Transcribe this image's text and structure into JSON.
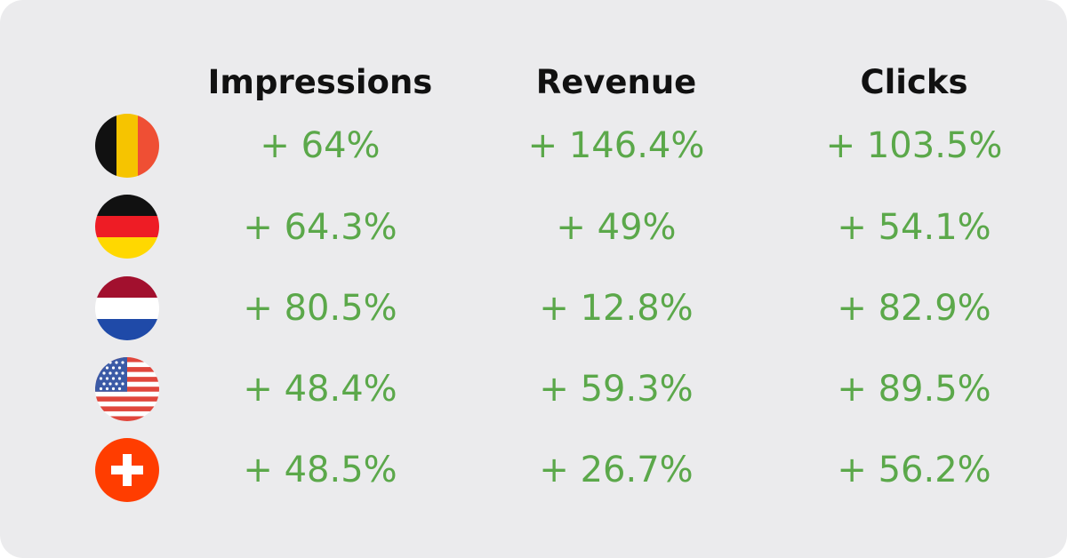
{
  "chart_data": {
    "type": "table",
    "columns": [
      "Impressions",
      "Revenue",
      "Clicks"
    ],
    "rows": [
      {
        "flag": "belgium-flag-icon",
        "values": [
          "+ 64%",
          "+ 146.4%",
          "+ 103.5%"
        ]
      },
      {
        "flag": "germany-flag-icon",
        "values": [
          "+ 64.3%",
          "+ 49%",
          "+ 54.1%"
        ]
      },
      {
        "flag": "netherlands-flag-icon",
        "values": [
          "+ 80.5%",
          "+ 12.8%",
          "+ 82.9%"
        ]
      },
      {
        "flag": "usa-flag-icon",
        "values": [
          "+ 48.4%",
          "+ 59.3%",
          "+ 89.5%"
        ]
      },
      {
        "flag": "switzerland-flag-icon",
        "values": [
          "+ 48.5%",
          "+ 26.7%",
          "+ 56.2%"
        ]
      }
    ]
  },
  "colors": {
    "background": "#ebebed",
    "value_text": "#5ba84a",
    "header_text": "#111111"
  }
}
